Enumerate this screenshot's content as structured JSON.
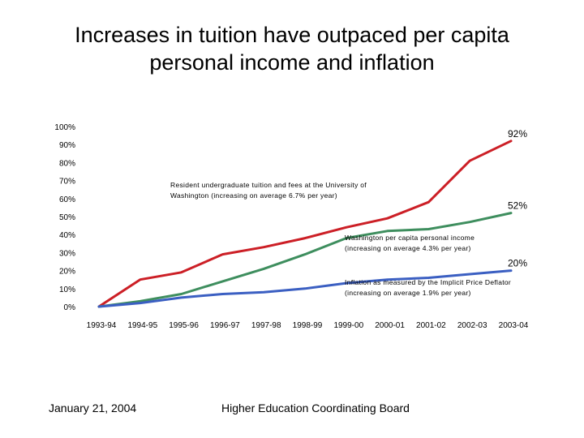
{
  "title_line1": "Increases in tuition have outpaced per capita",
  "title_line2": "personal income and inflation",
  "footer": {
    "date": "January 21, 2004",
    "organization": "Higher Education Coordinating Board"
  },
  "chart_data": {
    "type": "line",
    "categories": [
      "1993-94",
      "1994-95",
      "1995-96",
      "1996-97",
      "1997-98",
      "1998-99",
      "1999-00",
      "2000-01",
      "2001-02",
      "2002-03",
      "2003-04"
    ],
    "ytick_labels": [
      "0%",
      "10%",
      "20%",
      "30%",
      "40%",
      "50%",
      "60%",
      "70%",
      "80%",
      "90%",
      "100%"
    ],
    "ylim": [
      0,
      100
    ],
    "grid": false,
    "series": [
      {
        "color": "#cc1f26",
        "values": [
          0,
          15,
          19,
          29,
          33,
          38,
          44,
          49,
          58,
          81,
          92
        ],
        "end_label": "92%",
        "annotation": [
          "Resident undergraduate tuition and fees at the University of",
          "Washington (increasing on average 6.7% per year)"
        ]
      },
      {
        "color": "#3e8e5e",
        "values": [
          0,
          3,
          7,
          14,
          21,
          29,
          38,
          42,
          43,
          47,
          52
        ],
        "end_label": "52%",
        "annotation": [
          "Washington per capita personal income",
          "(increasing on average 4.3% per year)"
        ]
      },
      {
        "color": "#3b5fc2",
        "values": [
          0,
          2,
          5,
          7,
          8,
          10,
          13,
          15,
          16,
          18,
          20
        ],
        "end_label": "20%",
        "annotation": [
          "Inflation as measured by the Implicit Price Deflator",
          "(increasing on average 1.9% per year)"
        ]
      }
    ]
  }
}
